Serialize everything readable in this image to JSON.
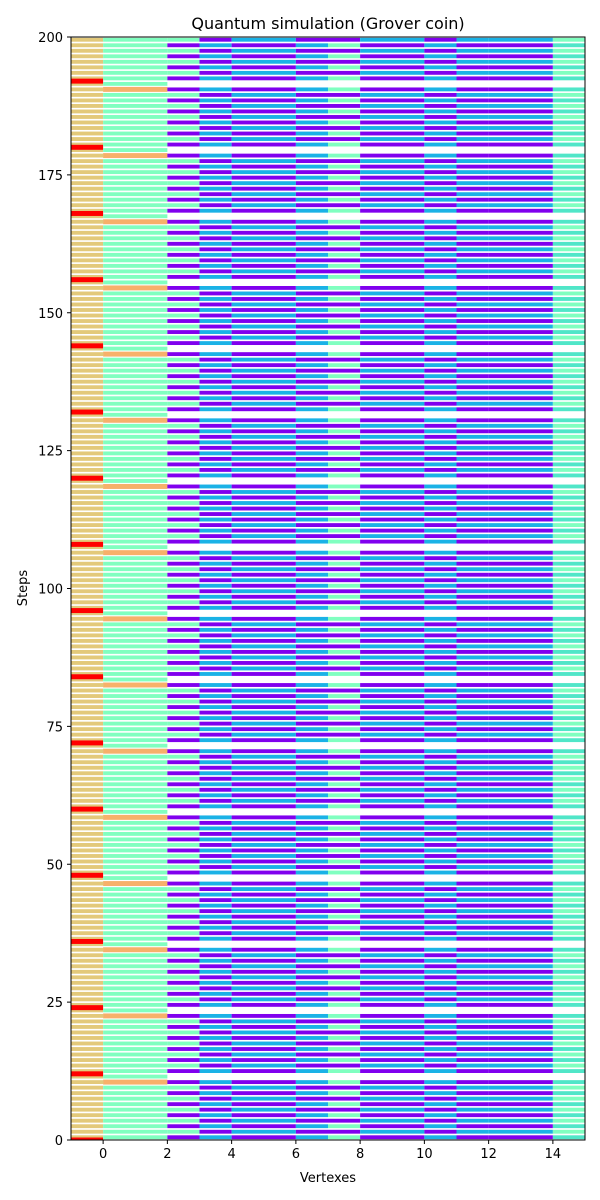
{
  "chart_data": {
    "type": "heatmap",
    "title": "Quantum simulation (Grover coin)",
    "xlabel": "Vertexes",
    "ylabel": "Steps",
    "xlim": [
      -1,
      15
    ],
    "ylim": [
      0,
      200
    ],
    "xticks": [
      0,
      2,
      4,
      6,
      8,
      10,
      12,
      14
    ],
    "yticks": [
      0,
      25,
      50,
      75,
      100,
      125,
      150,
      175,
      200
    ],
    "grid": false,
    "columns": [
      {
        "x0": -1,
        "x1": 0,
        "color": "#e3c97a",
        "accents": [
          {
            "color": "#ff0000",
            "y_start": 0,
            "period": 12,
            "width": 1.0
          }
        ]
      },
      {
        "x0": 0,
        "x1": 2,
        "color": "#80ffc0",
        "accents": [
          {
            "color": "#f7b06a",
            "y_start": 10.5,
            "period": 12,
            "width": 1.0
          }
        ]
      },
      {
        "x0": 2,
        "x1": 3,
        "color": "#8000ee",
        "alt_color": "#80ffc0",
        "phase": 0
      },
      {
        "x0": 3,
        "x1": 4,
        "color": "#8000ee",
        "alt_color": "#1ab2e6",
        "phase": 1
      },
      {
        "x0": 4,
        "x1": 6,
        "color": "#8000ee",
        "alt_color": "#1ab2e6",
        "phase": 0
      },
      {
        "x0": 6,
        "x1": 7,
        "color": "#8000ee",
        "alt_color": "#1ab2e6",
        "phase": 1
      },
      {
        "x0": 7,
        "x1": 8,
        "color": "#8000ee",
        "alt_color": "#80ffc0",
        "phase": 1
      },
      {
        "x0": 8,
        "x1": 10,
        "color": "#8000ee",
        "alt_color": "#1ab2e6",
        "phase": 0
      },
      {
        "x0": 10,
        "x1": 11,
        "color": "#8000ee",
        "alt_color": "#1ab2e6",
        "phase": 1
      },
      {
        "x0": 11,
        "x1": 12,
        "color": "#8000ee",
        "alt_color": "#1ab2e6",
        "phase": 0
      },
      {
        "x0": 12,
        "x1": 14,
        "color": "#1ab2e6",
        "alt_color": "#8000ee",
        "phase": 1
      },
      {
        "x0": 14,
        "x1": 15,
        "color": "#50e6c8",
        "alt_color": "#80ffc0",
        "phase": 0
      }
    ]
  }
}
